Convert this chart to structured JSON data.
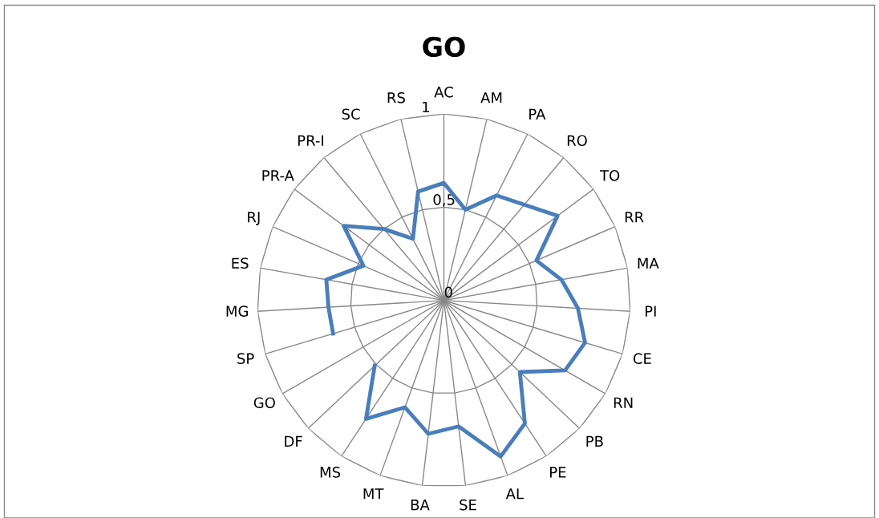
{
  "chart_data": {
    "type": "radar",
    "title": "GO",
    "categories": [
      "AC",
      "AM",
      "PA",
      "RO",
      "TO",
      "RR",
      "MA",
      "PI",
      "CE",
      "RN",
      "PB",
      "PE",
      "AL",
      "SE",
      "BA",
      "MT",
      "MS",
      "DF",
      "GO",
      "SP",
      "MG",
      "ES",
      "RJ",
      "PR-A",
      "PR-I",
      "SC",
      "RS"
    ],
    "series": [
      {
        "color": "#4a7ebb",
        "values": [
          0.63,
          0.5,
          0.63,
          0.67,
          0.76,
          0.54,
          0.64,
          0.72,
          0.79,
          0.75,
          0.56,
          0.79,
          0.89,
          0.68,
          0.72,
          0.61,
          0.76,
          0.51,
          null,
          0.62,
          0.62,
          0.64,
          0.47,
          0.67,
          0.5,
          0.37,
          0.6
        ]
      }
    ],
    "ylim": [
      0,
      1
    ],
    "yticks": [
      0,
      {
        "value": 0.5,
        "label": "0,5"
      },
      1
    ],
    "grid": true,
    "marker": "none",
    "line_style": "solid"
  }
}
